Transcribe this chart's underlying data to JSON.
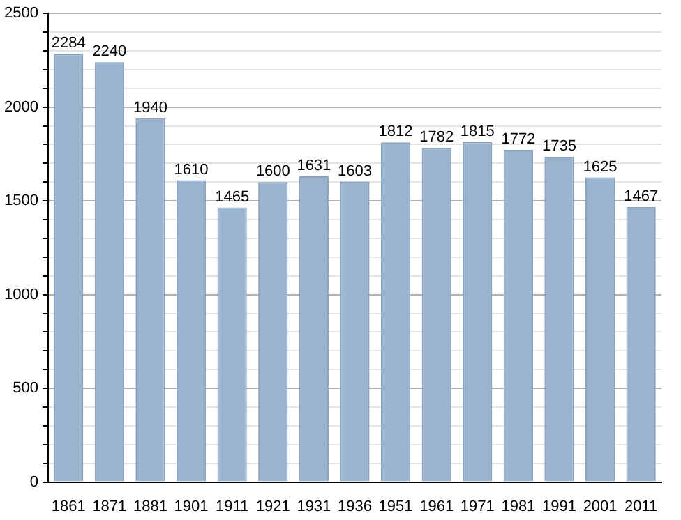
{
  "chart_data": {
    "type": "bar",
    "categories": [
      "1861",
      "1871",
      "1881",
      "1901",
      "1911",
      "1921",
      "1931",
      "1936",
      "1951",
      "1961",
      "1971",
      "1981",
      "1991",
      "2001",
      "2011"
    ],
    "values": [
      2284,
      2240,
      1940,
      1610,
      1465,
      1600,
      1631,
      1603,
      1812,
      1782,
      1815,
      1772,
      1735,
      1625,
      1467
    ],
    "color": "#9ab3cf",
    "data_labels": true,
    "grid": "y",
    "legend": false,
    "ylim": [
      0,
      2500
    ],
    "yticks": [
      0,
      {
        "value": 100,
        "label": null
      },
      {
        "value": 200,
        "label": null
      },
      {
        "value": 300,
        "label": null
      },
      {
        "value": 400,
        "label": null
      },
      500,
      {
        "value": 600,
        "label": null
      },
      {
        "value": 700,
        "label": null
      },
      {
        "value": 800,
        "label": null
      },
      {
        "value": 900,
        "label": null
      },
      1000,
      {
        "value": 1100,
        "label": null
      },
      {
        "value": 1200,
        "label": null
      },
      {
        "value": 1300,
        "label": null
      },
      {
        "value": 1400,
        "label": null
      },
      1500,
      {
        "value": 1600,
        "label": null
      },
      {
        "value": 1700,
        "label": null
      },
      {
        "value": 1800,
        "label": null
      },
      {
        "value": 1900,
        "label": null
      },
      2000,
      {
        "value": 2100,
        "label": null
      },
      {
        "value": 2200,
        "label": null
      },
      {
        "value": 2300,
        "label": null
      },
      {
        "value": 2400,
        "label": null
      },
      2500
    ]
  }
}
